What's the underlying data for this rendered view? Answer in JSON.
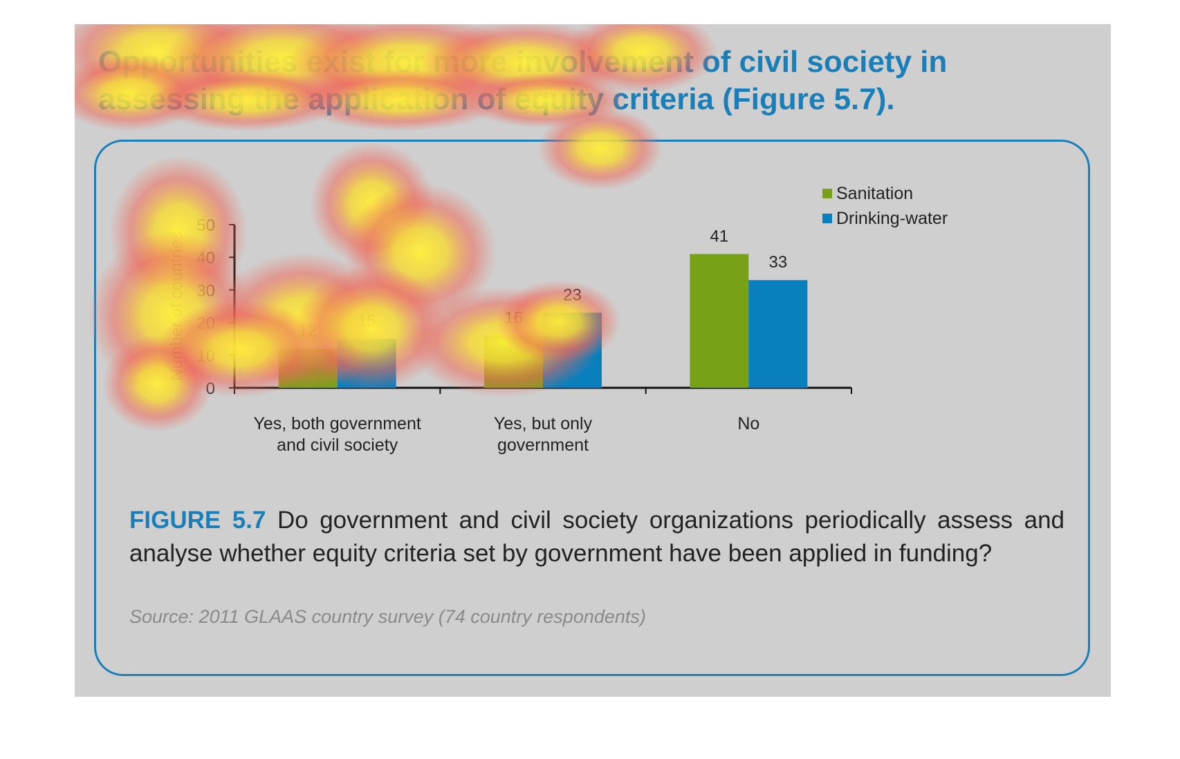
{
  "headline": "Opportunities exist for more involvement of civil society in assessing the application of equity criteria (Figure 5.7).",
  "caption": {
    "label": "FIGURE 5.7",
    "text": " Do government and civil society organizations periodically assess and analyse whether equity criteria set by government have been applied in funding?"
  },
  "source": "Source: 2011 GLAAS country survey (74 country respondents)",
  "colors": {
    "accent": "#1a7fb8",
    "sanitation": "#79a118",
    "drinking_water": "#0a7fbd",
    "background": "#cfcfcf"
  },
  "chart_data": {
    "type": "bar",
    "ylabel": "Number of countries",
    "ylim": [
      0,
      50
    ],
    "yticks": [
      0,
      10,
      20,
      30,
      40,
      50
    ],
    "categories": [
      [
        "Yes, both government",
        "and civil society"
      ],
      [
        "Yes, but only",
        "government"
      ],
      [
        "No"
      ]
    ],
    "series": [
      {
        "name": "Sanitation",
        "color": "#79a118",
        "values": [
          12,
          16,
          41
        ]
      },
      {
        "name": "Drinking-water",
        "color": "#0a7fbd",
        "values": [
          15,
          23,
          33
        ]
      }
    ],
    "legend_position": "top-right",
    "grid": false,
    "data_labels": true
  }
}
